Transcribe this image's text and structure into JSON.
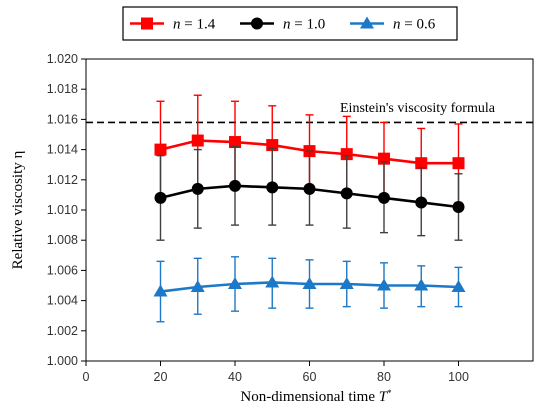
{
  "chart_data": {
    "type": "line",
    "xlabel": "Non-dimensional time",
    "xlabel_symbol": "T",
    "xlabel_symbol_sup": "*",
    "ylabel": "Relative viscosity η",
    "xlim": [
      0,
      120
    ],
    "ylim": [
      1.0,
      1.02
    ],
    "x_ticks": [
      "0",
      "20",
      "40",
      "60",
      "80",
      "100"
    ],
    "y_ticks": [
      "1.000",
      "1.002",
      "1.004",
      "1.006",
      "1.008",
      "1.010",
      "1.012",
      "1.014",
      "1.016",
      "1.018",
      "1.020"
    ],
    "grid": false,
    "legend_position": "top",
    "x": [
      20,
      30,
      40,
      50,
      60,
      70,
      80,
      90,
      100
    ],
    "series": [
      {
        "name_symbol": "n",
        "name_value": " = 1.4",
        "color": "#ff0000",
        "marker": "square",
        "values": [
          1.014,
          1.0146,
          1.0145,
          1.0143,
          1.0139,
          1.0137,
          1.0134,
          1.0131,
          1.0131
        ],
        "err_upper": [
          1.0172,
          1.0176,
          1.0172,
          1.0169,
          1.0163,
          1.0162,
          1.0158,
          1.0154,
          1.0157
        ],
        "err_lower": [
          1.0108,
          1.0114,
          1.0116,
          1.0116,
          1.0115,
          1.0112,
          1.0109,
          1.0107,
          1.0105
        ]
      },
      {
        "name_symbol": "n",
        "name_value": " = 1.0",
        "color": "#000000",
        "marker": "circle",
        "values": [
          1.0108,
          1.0114,
          1.0116,
          1.0115,
          1.0114,
          1.0111,
          1.0108,
          1.0105,
          1.0102
        ],
        "err_upper": [
          1.0136,
          1.014,
          1.0142,
          1.0141,
          1.0139,
          1.0136,
          1.0132,
          1.0128,
          1.0124
        ],
        "err_lower": [
          1.008,
          1.0088,
          1.009,
          1.009,
          1.009,
          1.0088,
          1.0085,
          1.0083,
          1.008
        ]
      },
      {
        "name_symbol": "n",
        "name_value": " = 0.6",
        "color": "#1e78c8",
        "marker": "triangle",
        "values": [
          1.0046,
          1.0049,
          1.0051,
          1.0052,
          1.0051,
          1.0051,
          1.005,
          1.005,
          1.0049
        ],
        "err_upper": [
          1.0066,
          1.0068,
          1.0069,
          1.0068,
          1.0067,
          1.0066,
          1.0065,
          1.0063,
          1.0062
        ],
        "err_lower": [
          1.0026,
          1.0031,
          1.0033,
          1.0035,
          1.0035,
          1.0036,
          1.0035,
          1.0036,
          1.0036
        ]
      }
    ],
    "reference_line": {
      "label": "Einstein's viscosity formula",
      "y": 1.0158,
      "style": "dashed",
      "color": "#000000"
    }
  }
}
